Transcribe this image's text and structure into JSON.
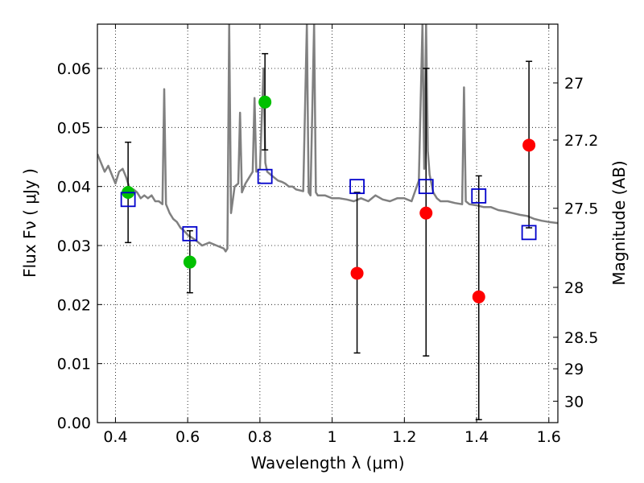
{
  "chart_data": {
    "type": "scatter",
    "xlabel": "Wavelength  λ (μm)",
    "ylabel": "Flux  Fν  ( μJy )",
    "y2label": "Magnitude (AB)",
    "xlim": [
      0.35,
      1.625
    ],
    "ylim": [
      0.0,
      0.0675
    ],
    "grid": true,
    "x_ticks": [
      {
        "value": 0.4,
        "label": "0.4"
      },
      {
        "value": 0.6,
        "label": "0.6"
      },
      {
        "value": 0.8,
        "label": "0.8"
      },
      {
        "value": 1.0,
        "label": "1"
      },
      {
        "value": 1.2,
        "label": "1.2"
      },
      {
        "value": 1.4,
        "label": "1.4"
      },
      {
        "value": 1.6,
        "label": "1.6"
      }
    ],
    "y_ticks": [
      {
        "value": 0.0,
        "label": "0.00"
      },
      {
        "value": 0.01,
        "label": "0.01"
      },
      {
        "value": 0.02,
        "label": "0.02"
      },
      {
        "value": 0.03,
        "label": "0.03"
      },
      {
        "value": 0.04,
        "label": "0.04"
      },
      {
        "value": 0.05,
        "label": "0.05"
      },
      {
        "value": 0.06,
        "label": "0.06"
      }
    ],
    "y2_ticks": [
      {
        "mag": 27.0,
        "label": "27"
      },
      {
        "mag": 27.2,
        "label": "27.2"
      },
      {
        "mag": 27.5,
        "label": "27.5"
      },
      {
        "mag": 28.0,
        "label": "28"
      },
      {
        "mag": 28.5,
        "label": "28.5"
      },
      {
        "mag": 29.0,
        "label": "29"
      },
      {
        "mag": 30.0,
        "label": "30"
      }
    ],
    "colors": {
      "model": "#808080",
      "detected": "#00c000",
      "nondetected": "#ff0000",
      "model_photometry": "#0000cc",
      "errorbar": "#000000"
    },
    "series": [
      {
        "kind": "spectrum",
        "x": [
          0.35,
          0.36,
          0.37,
          0.38,
          0.39,
          0.4,
          0.41,
          0.42,
          0.43,
          0.44,
          0.45,
          0.46,
          0.47,
          0.48,
          0.49,
          0.5,
          0.51,
          0.52,
          0.53,
          0.535,
          0.54,
          0.55,
          0.56,
          0.57,
          0.58,
          0.59,
          0.6,
          0.62,
          0.64,
          0.66,
          0.68,
          0.7,
          0.705,
          0.71,
          0.715,
          0.72,
          0.73,
          0.74,
          0.745,
          0.75,
          0.76,
          0.77,
          0.78,
          0.785,
          0.79,
          0.8,
          0.81,
          0.815,
          0.82,
          0.83,
          0.84,
          0.85,
          0.86,
          0.87,
          0.88,
          0.89,
          0.9,
          0.92,
          0.93,
          0.935,
          0.94,
          0.95,
          0.955,
          0.96,
          0.98,
          1.0,
          1.02,
          1.04,
          1.06,
          1.08,
          1.1,
          1.12,
          1.14,
          1.16,
          1.18,
          1.2,
          1.22,
          1.24,
          1.25,
          1.255,
          1.26,
          1.265,
          1.27,
          1.28,
          1.29,
          1.3,
          1.32,
          1.34,
          1.36,
          1.365,
          1.37,
          1.38,
          1.4,
          1.42,
          1.44,
          1.46,
          1.48,
          1.5,
          1.52,
          1.54,
          1.56,
          1.58,
          1.6,
          1.625
        ],
        "y": [
          0.0455,
          0.044,
          0.0425,
          0.0435,
          0.042,
          0.0405,
          0.0425,
          0.043,
          0.0415,
          0.0395,
          0.0395,
          0.039,
          0.038,
          0.0385,
          0.038,
          0.0385,
          0.0375,
          0.0375,
          0.037,
          0.0565,
          0.037,
          0.0355,
          0.0345,
          0.034,
          0.033,
          0.0325,
          0.0318,
          0.031,
          0.03,
          0.0305,
          0.03,
          0.0295,
          0.029,
          0.0295,
          0.0675,
          0.0355,
          0.04,
          0.0405,
          0.0525,
          0.039,
          0.0405,
          0.0415,
          0.0425,
          0.055,
          0.0425,
          0.043,
          0.06,
          0.044,
          0.0425,
          0.042,
          0.0415,
          0.041,
          0.0408,
          0.0405,
          0.04,
          0.04,
          0.0395,
          0.0392,
          0.0675,
          0.039,
          0.0385,
          0.0675,
          0.039,
          0.0385,
          0.0385,
          0.038,
          0.038,
          0.0378,
          0.0375,
          0.038,
          0.0375,
          0.0385,
          0.0378,
          0.0375,
          0.038,
          0.038,
          0.0375,
          0.041,
          0.0675,
          0.043,
          0.0675,
          0.046,
          0.042,
          0.039,
          0.038,
          0.0375,
          0.0375,
          0.0372,
          0.037,
          0.0568,
          0.0375,
          0.037,
          0.0368,
          0.0365,
          0.0365,
          0.036,
          0.0358,
          0.0355,
          0.0352,
          0.035,
          0.0345,
          0.0342,
          0.034,
          0.0338
        ]
      },
      {
        "kind": "detected",
        "points": [
          {
            "x": 0.435,
            "y": 0.039,
            "yerr_lo": 0.0305,
            "yerr_hi": 0.0475
          },
          {
            "x": 0.606,
            "y": 0.0272,
            "yerr_lo": 0.022,
            "yerr_hi": 0.0325
          },
          {
            "x": 0.814,
            "y": 0.0543,
            "yerr_lo": 0.0462,
            "yerr_hi": 0.0625
          }
        ]
      },
      {
        "kind": "nondetected",
        "points": [
          {
            "x": 1.069,
            "y": 0.0253,
            "yerr_lo": 0.0118,
            "yerr_hi": 0.039
          },
          {
            "x": 1.26,
            "y": 0.0355,
            "yerr_lo": 0.0113,
            "yerr_hi": 0.06
          },
          {
            "x": 1.406,
            "y": 0.0213,
            "yerr_lo": 0.0005,
            "yerr_hi": 0.0418
          },
          {
            "x": 1.545,
            "y": 0.047,
            "yerr_lo": 0.033,
            "yerr_hi": 0.0612
          }
        ]
      },
      {
        "kind": "model_photometry",
        "points": [
          {
            "x": 0.435,
            "y": 0.0378
          },
          {
            "x": 0.606,
            "y": 0.032
          },
          {
            "x": 0.814,
            "y": 0.0417
          },
          {
            "x": 1.069,
            "y": 0.04
          },
          {
            "x": 1.26,
            "y": 0.04
          },
          {
            "x": 1.406,
            "y": 0.0384
          },
          {
            "x": 1.545,
            "y": 0.0322
          }
        ]
      }
    ]
  }
}
